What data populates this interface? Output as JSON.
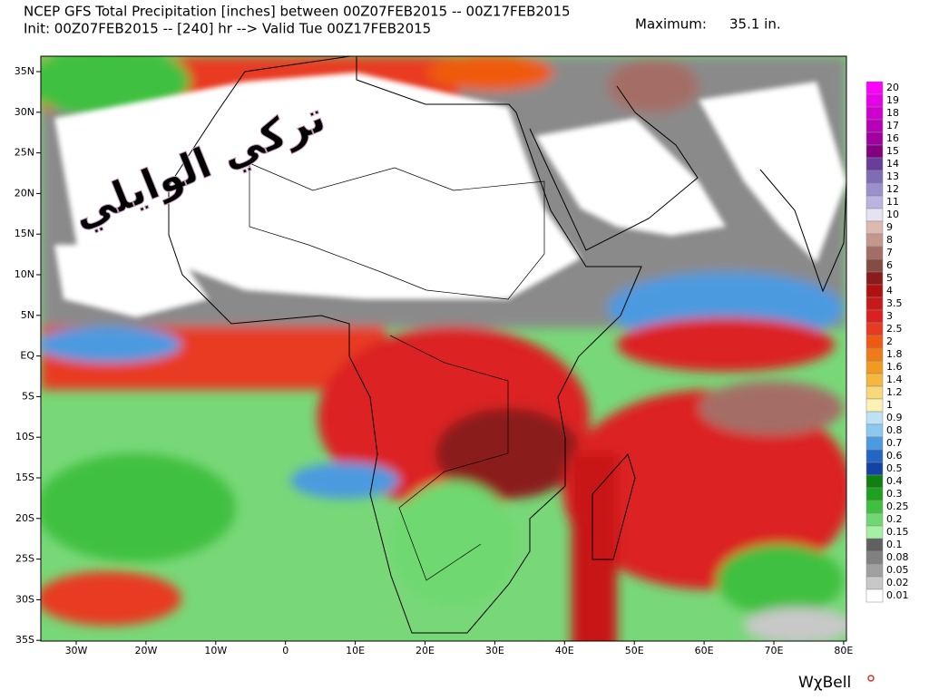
{
  "header": {
    "line1": "NCEP GFS Total Precipitation [inches] between 00Z07FEB2015 -- 00Z17FEB2015",
    "line2": "Init: 00Z07FEB2015 -- [240] hr --> Valid Tue 00Z17FEB2015",
    "maximum_label": "Maximum:",
    "maximum_value": "35.1 in."
  },
  "map": {
    "lat_labels": [
      "35N",
      "30N",
      "25N",
      "20N",
      "15N",
      "10N",
      "5N",
      "EQ",
      "5S",
      "10S",
      "15S",
      "20S",
      "25S",
      "30S",
      "35S"
    ],
    "lon_labels": [
      "30W",
      "20W",
      "10W",
      "0",
      "10E",
      "20E",
      "30E",
      "40E",
      "50E",
      "60E",
      "70E",
      "80E"
    ]
  },
  "legend": [
    {
      "label": "20",
      "color": "#ff00ff"
    },
    {
      "label": "19",
      "color": "#e800e8"
    },
    {
      "label": "18",
      "color": "#d000d0"
    },
    {
      "label": "17",
      "color": "#b800b8"
    },
    {
      "label": "16",
      "color": "#a000a0"
    },
    {
      "label": "15",
      "color": "#800080"
    },
    {
      "label": "14",
      "color": "#6a3d9a"
    },
    {
      "label": "13",
      "color": "#7e6cb4"
    },
    {
      "label": "12",
      "color": "#9c90cc"
    },
    {
      "label": "11",
      "color": "#bcb4e0"
    },
    {
      "label": "10",
      "color": "#e6e2f2"
    },
    {
      "label": "9",
      "color": "#dcbab2"
    },
    {
      "label": "8",
      "color": "#c4968c"
    },
    {
      "label": "7",
      "color": "#a46e66"
    },
    {
      "label": "6",
      "color": "#844c44"
    },
    {
      "label": "5",
      "color": "#8b1a1a"
    },
    {
      "label": "4",
      "color": "#b01010"
    },
    {
      "label": "3.5",
      "color": "#c81818"
    },
    {
      "label": "3",
      "color": "#dc2020"
    },
    {
      "label": "2.5",
      "color": "#e83a20"
    },
    {
      "label": "2",
      "color": "#f05a10"
    },
    {
      "label": "1.8",
      "color": "#f07a18"
    },
    {
      "label": "1.6",
      "color": "#f09a20"
    },
    {
      "label": "1.4",
      "color": "#f4b840"
    },
    {
      "label": "1.2",
      "color": "#f8d878"
    },
    {
      "label": "1",
      "color": "#fff2b4"
    },
    {
      "label": "0.9",
      "color": "#bce2f4"
    },
    {
      "label": "0.8",
      "color": "#8cc8f0"
    },
    {
      "label": "0.7",
      "color": "#4c9ae0"
    },
    {
      "label": "0.6",
      "color": "#2464c4"
    },
    {
      "label": "0.5",
      "color": "#1244a4"
    },
    {
      "label": "0.4",
      "color": "#108010"
    },
    {
      "label": "0.3",
      "color": "#20a020"
    },
    {
      "label": "0.25",
      "color": "#40c040"
    },
    {
      "label": "0.2",
      "color": "#70d870"
    },
    {
      "label": "0.15",
      "color": "#a4f0a4"
    },
    {
      "label": "0.1",
      "color": "#606060"
    },
    {
      "label": "0.08",
      "color": "#808080"
    },
    {
      "label": "0.05",
      "color": "#a0a0a0"
    },
    {
      "label": "0.02",
      "color": "#c8c8c8"
    },
    {
      "label": "0.01",
      "color": "#ffffff"
    }
  ],
  "watermark": "تركي الوايلي",
  "logo": "WχBell"
}
